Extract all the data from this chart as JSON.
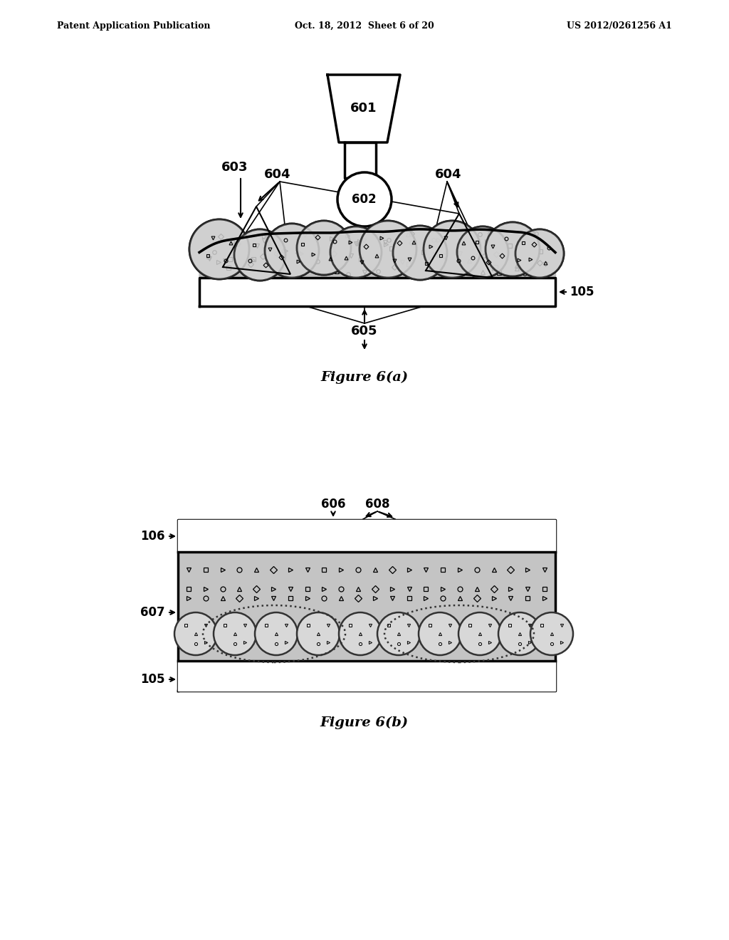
{
  "bg_color": "#ffffff",
  "header_left": "Patent Application Publication",
  "header_mid": "Oct. 18, 2012  Sheet 6 of 20",
  "header_right": "US 2012/0261256 A1",
  "fig_a_caption": "Figure 6(a)",
  "fig_b_caption": "Figure 6(b)",
  "gray_cell": "#c8c8c8",
  "gray_bg": "#bbbbbb",
  "white": "#ffffff",
  "black": "#000000",
  "lw_thick": 2.0,
  "lw_medium": 1.5,
  "lw_thin": 1.0
}
